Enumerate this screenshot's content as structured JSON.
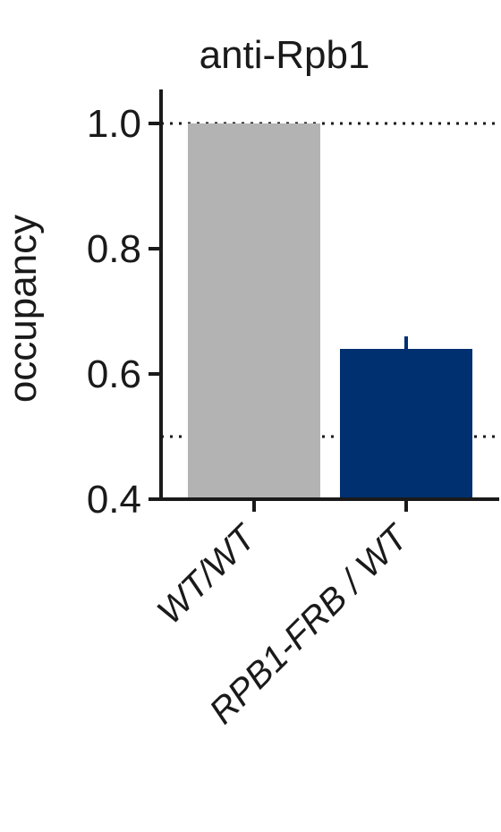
{
  "chart_data": {
    "type": "bar",
    "title": "anti-Rpb1",
    "xlabel": "",
    "ylabel": "occupancy",
    "categories": [
      "WT/WT",
      "RPB1-FRB / WT"
    ],
    "values": [
      1.0,
      0.64
    ],
    "error": [
      0.0,
      0.02
    ],
    "colors": [
      "#b3b3b3",
      "#003070"
    ],
    "ylim": [
      0.4,
      1.0
    ],
    "yticks": [
      "0.4",
      "0.6",
      "0.8",
      "1.0"
    ],
    "reference_lines": [
      1.0,
      0.5
    ],
    "grid": false
  }
}
